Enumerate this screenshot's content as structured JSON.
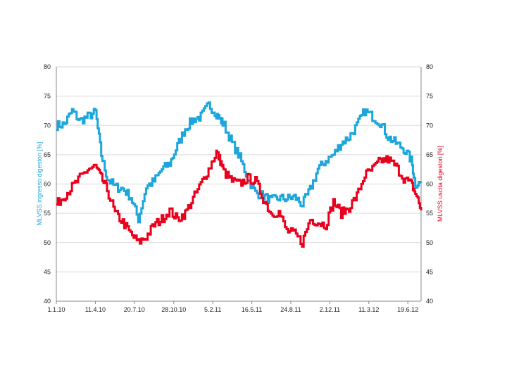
{
  "chart_data": {
    "type": "line",
    "ylim_left": [
      40,
      80
    ],
    "ylim_right": [
      40,
      80
    ],
    "y_ticks": [
      40,
      45,
      50,
      55,
      60,
      65,
      70,
      75,
      80
    ],
    "ylabel_left": "MLVSS ingresso digestori [%]",
    "ylabel_right": "MLVSS uscita digestori [%]",
    "x_tick_labels": [
      "1.1.10",
      "11.4.10",
      "20.7.10",
      "28.10.10",
      "5.2.11",
      "16.5.11",
      "24.8.11",
      "2.12.11",
      "11.3.12",
      "19.6.12"
    ],
    "x_tick_positions": [
      0,
      100,
      200,
      301,
      401,
      501,
      601,
      701,
      801,
      901
    ],
    "x_max": 935,
    "grid": "horizontal",
    "series": [
      {
        "axis": "left",
        "color": "#1CA6DB",
        "x": [
          0,
          20,
          40,
          60,
          80,
          100,
          115,
          130,
          150,
          170,
          190,
          210,
          230,
          250,
          270,
          290,
          310,
          330,
          350,
          370,
          390,
          410,
          420,
          430,
          450,
          470,
          490,
          510,
          530,
          550,
          570,
          590,
          610,
          630,
          650,
          670,
          690,
          710,
          730,
          750,
          770,
          790,
          810,
          830,
          850,
          870,
          890,
          910,
          920,
          935
        ],
        "values": [
          70.0,
          70.2,
          72.5,
          70.8,
          71.5,
          72.3,
          65.0,
          61.0,
          59.5,
          59.2,
          57.8,
          54.0,
          59.5,
          60.5,
          62.5,
          63.5,
          66.5,
          69.5,
          71.0,
          71.5,
          73.5,
          72.0,
          71.0,
          70.0,
          67.0,
          64.5,
          61.0,
          58.5,
          58.0,
          57.2,
          57.6,
          57.5,
          57.8,
          56.5,
          59.0,
          62.5,
          64.0,
          65.0,
          67.0,
          68.0,
          70.0,
          72.5,
          71.5,
          70.5,
          68.0,
          67.0,
          66.0,
          64.0,
          60.0,
          60.2
        ]
      },
      {
        "axis": "right",
        "color": "#E8001C",
        "x": [
          0,
          20,
          40,
          60,
          80,
          100,
          115,
          130,
          150,
          170,
          190,
          210,
          230,
          250,
          270,
          290,
          310,
          330,
          350,
          370,
          390,
          410,
          420,
          430,
          450,
          470,
          490,
          510,
          530,
          550,
          570,
          590,
          610,
          630,
          650,
          670,
          690,
          710,
          730,
          750,
          770,
          790,
          810,
          830,
          850,
          870,
          890,
          910,
          920,
          935
        ],
        "values": [
          56.5,
          58.0,
          59.5,
          61.0,
          62.5,
          63.0,
          61.0,
          59.0,
          55.0,
          53.5,
          51.5,
          50.0,
          51.0,
          53.0,
          54.0,
          55.5,
          54.0,
          55.0,
          57.5,
          60.0,
          62.5,
          65.5,
          64.0,
          62.0,
          60.5,
          60.0,
          61.0,
          60.5,
          57.5,
          55.0,
          55.2,
          52.0,
          51.5,
          50.0,
          54.0,
          53.5,
          53.0,
          57.0,
          55.0,
          56.0,
          58.0,
          61.5,
          62.5,
          64.0,
          64.2,
          63.0,
          61.0,
          60.0,
          58.5,
          55.5
        ]
      }
    ]
  }
}
